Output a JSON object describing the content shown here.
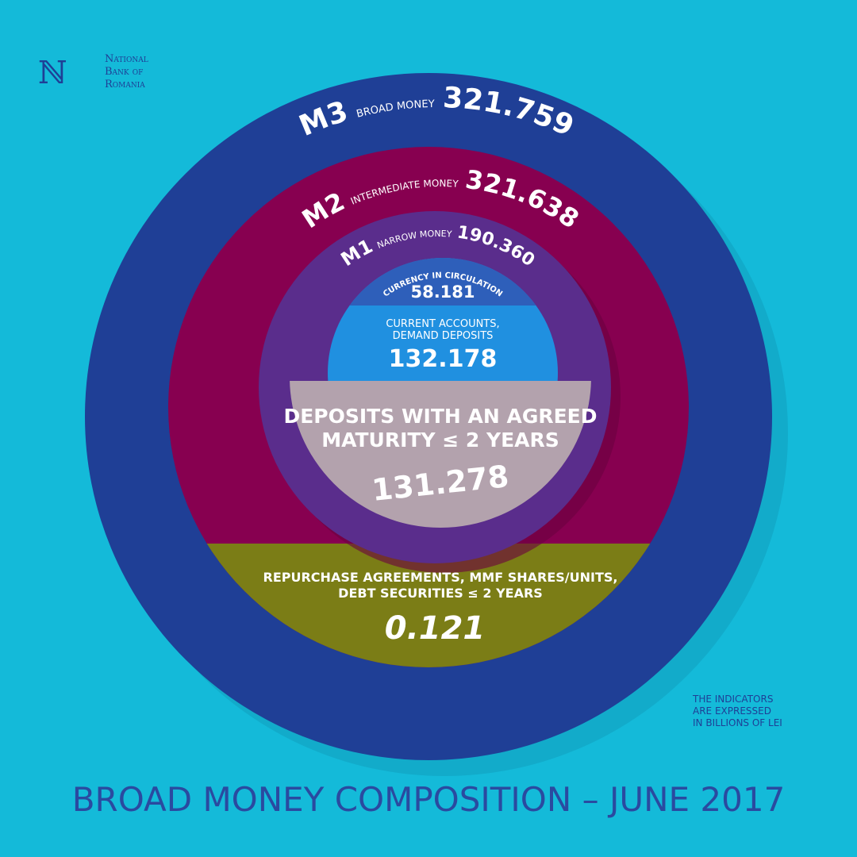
{
  "logo": {
    "lines": [
      "National",
      "Bank of",
      "Romania"
    ]
  },
  "rings": [
    {
      "code": "M3",
      "name": "BROAD MONEY",
      "value": "321.759"
    },
    {
      "code": "M2",
      "name": "INTERMEDIATE MONEY",
      "value": "321.638"
    },
    {
      "code": "M1",
      "name": "NARROW MONEY",
      "value": "190.360"
    }
  ],
  "components": {
    "currency": {
      "label": "CURRENCY IN CIRCULATION",
      "value": "58.181"
    },
    "current_accounts": {
      "label": [
        "CURRENT ACCOUNTS,",
        "DEMAND DEPOSITS"
      ],
      "value": "132.178"
    },
    "deposits": {
      "label": [
        "DEPOSITS WITH AN AGREED",
        "MATURITY ≤ 2 YEARS"
      ],
      "value": "131.278"
    },
    "repos": {
      "label": [
        "REPURCHASE AGREEMENTS, MMF SHARES/UNITS,",
        "DEBT SECURITIES ≤ 2 YEARS"
      ],
      "value": "0.121"
    }
  },
  "note": [
    "THE INDICATORS",
    "ARE EXPRESSED",
    "IN BILLIONS OF LEI"
  ],
  "title": "BROAD MONEY COMPOSITION – JUNE 2017"
}
